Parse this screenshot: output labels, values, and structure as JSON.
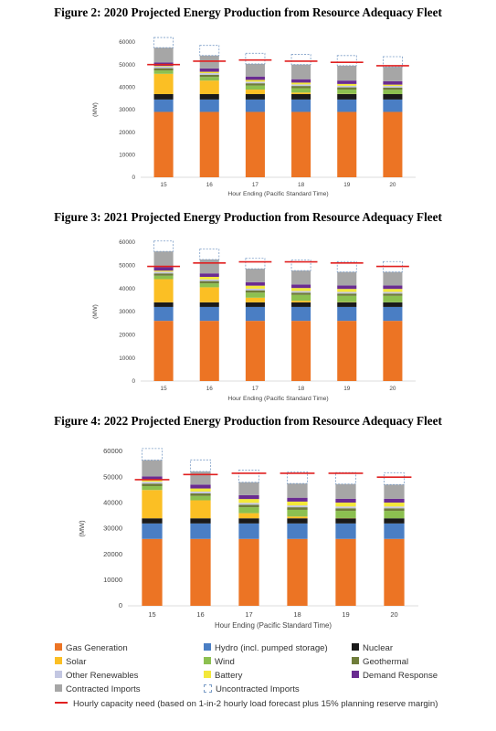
{
  "figures": [
    {
      "title": "Figure 2: 2020 Projected Energy Production from Resource Adequacy Fleet"
    },
    {
      "title": "Figure 3: 2021 Projected Energy Production from Resource Adequacy Fleet"
    },
    {
      "title": "Figure 4: 2022 Projected Energy Production from Resource Adequacy Fleet"
    }
  ],
  "legend": {
    "items": [
      {
        "key": "gas",
        "label": "Gas Generation"
      },
      {
        "key": "hydro",
        "label": "Hydro (incl. pumped storage)"
      },
      {
        "key": "nuclear",
        "label": "Nuclear"
      },
      {
        "key": "solar",
        "label": "Solar"
      },
      {
        "key": "wind",
        "label": "Wind"
      },
      {
        "key": "geothermal",
        "label": "Geothermal"
      },
      {
        "key": "other",
        "label": "Other Renewables"
      },
      {
        "key": "battery",
        "label": "Battery"
      },
      {
        "key": "dr",
        "label": "Demand Response"
      },
      {
        "key": "contracted",
        "label": "Contracted Imports"
      },
      {
        "key": "uncontracted",
        "label": "Uncontracted Imports"
      }
    ],
    "line_label": "Hourly capacity need (based on 1-in-2 hourly load forecast plus 15% planning reserve margin)"
  },
  "colors": {
    "gas": "#ec7424",
    "hydro": "#4a7ec4",
    "nuclear": "#1a1a1a",
    "solar": "#fbbf24",
    "wind": "#8cc050",
    "geothermal": "#6f7d3a",
    "other": "#c3c7e2",
    "battery": "#f3e83a",
    "dr": "#6a2c91",
    "contracted": "#a6a6a6",
    "uncontracted": "#7a9cc6",
    "need": "#e02020"
  },
  "chart_data": [
    {
      "type": "bar",
      "title": "Figure 2: 2020 Projected Energy Production from Resource Adequacy Fleet",
      "xlabel": "Hour Ending (Pacific Standard Time)",
      "ylabel": "(MW)",
      "ylim": [
        0,
        60000
      ],
      "yticks": [
        0,
        10000,
        20000,
        30000,
        40000,
        50000,
        60000
      ],
      "categories": [
        "15",
        "16",
        "17",
        "18",
        "19",
        "20"
      ],
      "stacked": true,
      "series": [
        {
          "key": "gas",
          "name": "Gas Generation",
          "values": [
            29000,
            29000,
            29000,
            29000,
            29000,
            29000
          ]
        },
        {
          "key": "hydro",
          "name": "Hydro (incl. pumped storage)",
          "values": [
            5500,
            5500,
            5500,
            5500,
            5500,
            5500
          ]
        },
        {
          "key": "nuclear",
          "name": "Nuclear",
          "values": [
            2400,
            2400,
            2400,
            2400,
            2400,
            2400
          ]
        },
        {
          "key": "solar",
          "name": "Solar",
          "values": [
            9000,
            6000,
            2000,
            700,
            100,
            0
          ]
        },
        {
          "key": "wind",
          "name": "Wind",
          "values": [
            1500,
            1600,
            1800,
            1900,
            1900,
            1900
          ]
        },
        {
          "key": "geothermal",
          "name": "Geothermal",
          "values": [
            1000,
            1000,
            1000,
            1000,
            1000,
            1000
          ]
        },
        {
          "key": "other",
          "name": "Other Renewables",
          "values": [
            700,
            700,
            700,
            700,
            700,
            700
          ]
        },
        {
          "key": "battery",
          "name": "Battery",
          "values": [
            300,
            600,
            800,
            800,
            800,
            600
          ]
        },
        {
          "key": "dr",
          "name": "Demand Response",
          "values": [
            1500,
            1500,
            1500,
            1500,
            1500,
            1500
          ]
        },
        {
          "key": "contracted",
          "name": "Contracted Imports",
          "values": [
            6600,
            5700,
            5600,
            6500,
            6600,
            6400
          ]
        },
        {
          "key": "uncontracted",
          "name": "Uncontracted Imports",
          "values": [
            4500,
            4500,
            4700,
            4500,
            4500,
            4500
          ]
        }
      ],
      "capacity_need": [
        50000,
        51500,
        52000,
        51500,
        51000,
        49500
      ]
    },
    {
      "type": "bar",
      "title": "Figure 3: 2021 Projected Energy Production from Resource Adequacy Fleet",
      "xlabel": "Hour Ending (Pacific Standard Time)",
      "ylabel": "(MW)",
      "ylim": [
        0,
        60000
      ],
      "yticks": [
        0,
        10000,
        20000,
        30000,
        40000,
        50000,
        60000
      ],
      "categories": [
        "15",
        "16",
        "17",
        "18",
        "19",
        "20"
      ],
      "stacked": true,
      "series": [
        {
          "key": "gas",
          "name": "Gas Generation",
          "values": [
            26000,
            26000,
            26000,
            26000,
            26000,
            26000
          ]
        },
        {
          "key": "hydro",
          "name": "Hydro (incl. pumped storage)",
          "values": [
            6000,
            6000,
            6000,
            6000,
            6000,
            6000
          ]
        },
        {
          "key": "nuclear",
          "name": "Nuclear",
          "values": [
            2000,
            2000,
            2000,
            2000,
            2000,
            2000
          ]
        },
        {
          "key": "solar",
          "name": "Solar",
          "values": [
            10000,
            6500,
            2000,
            700,
            100,
            0
          ]
        },
        {
          "key": "wind",
          "name": "Wind",
          "values": [
            1500,
            1700,
            2200,
            2500,
            2700,
            2800
          ]
        },
        {
          "key": "geothermal",
          "name": "Geothermal",
          "values": [
            1000,
            1000,
            1000,
            1000,
            1000,
            1000
          ]
        },
        {
          "key": "other",
          "name": "Other Renewables",
          "values": [
            700,
            700,
            700,
            700,
            700,
            700
          ]
        },
        {
          "key": "battery",
          "name": "Battery",
          "values": [
            500,
            1100,
            1300,
            1300,
            1300,
            1300
          ]
        },
        {
          "key": "dr",
          "name": "Demand Response",
          "values": [
            1500,
            1500,
            1500,
            1500,
            1500,
            1500
          ]
        },
        {
          "key": "contracted",
          "name": "Contracted Imports",
          "values": [
            6800,
            6000,
            5800,
            6000,
            5800,
            5800
          ]
        },
        {
          "key": "uncontracted",
          "name": "Uncontracted Imports",
          "values": [
            4500,
            4500,
            4500,
            4600,
            4500,
            4500
          ]
        }
      ],
      "capacity_need": [
        49500,
        51000,
        51500,
        51500,
        51000,
        49500
      ]
    },
    {
      "type": "bar",
      "title": "Figure 4: 2022 Projected Energy Production from Resource Adequacy Fleet",
      "xlabel": "Hour Ending (Pacific Standard Time)",
      "ylabel": "(MW)",
      "ylim": [
        0,
        60000
      ],
      "yticks": [
        0,
        10000,
        20000,
        30000,
        40000,
        50000,
        60000
      ],
      "categories": [
        "15",
        "16",
        "17",
        "18",
        "19",
        "20"
      ],
      "stacked": true,
      "series": [
        {
          "key": "gas",
          "name": "Gas Generation",
          "values": [
            26000,
            26000,
            26000,
            26000,
            26000,
            26000
          ]
        },
        {
          "key": "hydro",
          "name": "Hydro (incl. pumped storage)",
          "values": [
            6000,
            6000,
            6000,
            6000,
            6000,
            6000
          ]
        },
        {
          "key": "nuclear",
          "name": "Nuclear",
          "values": [
            2000,
            2000,
            2000,
            2000,
            2000,
            2000
          ]
        },
        {
          "key": "solar",
          "name": "Solar",
          "values": [
            11000,
            7000,
            2000,
            700,
            100,
            0
          ]
        },
        {
          "key": "wind",
          "name": "Wind",
          "values": [
            1500,
            1700,
            2300,
            2600,
            2800,
            2900
          ]
        },
        {
          "key": "geothermal",
          "name": "Geothermal",
          "values": [
            1000,
            1000,
            1000,
            1000,
            1000,
            1000
          ]
        },
        {
          "key": "other",
          "name": "Other Renewables",
          "values": [
            700,
            700,
            700,
            700,
            700,
            700
          ]
        },
        {
          "key": "battery",
          "name": "Battery",
          "values": [
            600,
            1200,
            1500,
            1500,
            1500,
            1500
          ]
        },
        {
          "key": "dr",
          "name": "Demand Response",
          "values": [
            1500,
            1500,
            1500,
            1500,
            1500,
            1500
          ]
        },
        {
          "key": "contracted",
          "name": "Contracted Imports",
          "values": [
            6300,
            5100,
            5000,
            5500,
            5700,
            5500
          ]
        },
        {
          "key": "uncontracted",
          "name": "Uncontracted Imports",
          "values": [
            4500,
            4500,
            4700,
            4500,
            4500,
            4500
          ]
        }
      ],
      "capacity_need": [
        49000,
        51000,
        51500,
        51500,
        51500,
        50000
      ]
    }
  ]
}
